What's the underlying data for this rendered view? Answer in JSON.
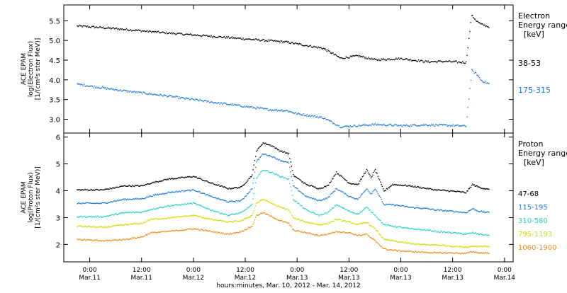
{
  "chart_data": [
    {
      "type": "scatter",
      "panel": "electron",
      "ylabel_lines": [
        "ACE EPAM",
        "log(Electron Flux)",
        "[1/(cm²s ster MeV)]"
      ],
      "ylim": [
        2.65,
        5.9
      ],
      "yticks": [
        3.0,
        3.5,
        4.0,
        4.5,
        5.0,
        5.5
      ],
      "ytick_labels": [
        "3.0",
        "3.5",
        "4.0",
        "4.5",
        "5.0",
        "5.5"
      ],
      "legend_title_lines": [
        "Electron",
        "Energy range",
        "[keV]"
      ],
      "series": [
        {
          "name": "38-53",
          "color": "#000000",
          "x": [
            -3,
            6,
            18,
            30,
            42,
            45.5,
            48,
            54,
            58,
            60,
            62,
            66,
            72,
            78,
            82,
            87,
            88.3,
            89.5,
            90.5,
            92.5
          ],
          "y": [
            5.38,
            5.31,
            5.2,
            5.1,
            5.0,
            4.97,
            4.92,
            4.81,
            4.56,
            4.59,
            4.62,
            4.52,
            4.55,
            4.47,
            4.48,
            4.45,
            5.65,
            5.5,
            5.42,
            5.35
          ]
        },
        {
          "name": "175-315",
          "color": "#1f78d4",
          "x": [
            -3,
            6,
            18,
            30,
            42,
            45.5,
            48,
            54,
            58,
            62,
            66,
            72,
            78,
            82,
            87,
            88.3,
            89.5,
            90.5,
            92.5
          ],
          "y": [
            3.9,
            3.76,
            3.6,
            3.42,
            3.25,
            3.23,
            3.15,
            3.05,
            2.82,
            2.85,
            2.88,
            2.85,
            2.87,
            2.86,
            2.84,
            4.25,
            4.15,
            4.0,
            3.9
          ]
        }
      ]
    },
    {
      "type": "scatter",
      "panel": "proton",
      "ylabel_lines": [
        "ACE EPAM",
        "log(Proton Flux)",
        "[1/(cm²s ster MeV)]"
      ],
      "ylim": [
        1.35,
        6.15
      ],
      "yticks": [
        2,
        3,
        4,
        5,
        6
      ],
      "ytick_labels": [
        "2",
        "3",
        "4",
        "5",
        "6"
      ],
      "legend_title_lines": [
        "Proton",
        "Energy range",
        "[keV]"
      ],
      "xlabel": "hours:minutes, Mar. 10, 2012 - Mar. 14, 2012",
      "xlim": [
        -6,
        98
      ],
      "xticks": [
        0,
        12,
        24,
        36,
        48,
        60,
        72,
        84,
        96
      ],
      "xtick_labels": [
        "0:00",
        "12:00",
        "0:00",
        "12:00",
        "0:00",
        "12:00",
        "0:00",
        "12:00",
        "0:00"
      ],
      "xtick_sublabels": [
        "Mar.11",
        "Mar.11",
        "Mar.12",
        "Mar.12",
        "Mar.13",
        "Mar.13",
        "Mar.13",
        "Mar.13",
        "Mar.14"
      ],
      "series": [
        {
          "name": "47-68",
          "color": "#000000",
          "x": [
            -3,
            3,
            8,
            12,
            14,
            18,
            24,
            28,
            32,
            35,
            37.5,
            38.5,
            40,
            42,
            44,
            46,
            47,
            50,
            53,
            55,
            57,
            60,
            62,
            64,
            65,
            66,
            68,
            70,
            74,
            78,
            80,
            84,
            87,
            88.5,
            90,
            92.5
          ],
          "y": [
            4.05,
            4.05,
            4.2,
            4.2,
            4.3,
            4.45,
            4.55,
            4.3,
            4.1,
            4.15,
            4.6,
            5.5,
            5.8,
            5.7,
            5.5,
            5.4,
            4.6,
            4.25,
            4.1,
            4.2,
            4.7,
            4.3,
            4.25,
            4.8,
            4.5,
            4.8,
            4.0,
            4.25,
            4.2,
            4.1,
            4.05,
            4.0,
            3.95,
            4.25,
            4.15,
            4.05
          ]
        },
        {
          "name": "115-195",
          "color": "#1f78d4",
          "x": [
            -3,
            3,
            8,
            12,
            14,
            18,
            24,
            28,
            32,
            35,
            37.5,
            38.5,
            40,
            42,
            44,
            46,
            47,
            50,
            53,
            55,
            57,
            60,
            62,
            64,
            65,
            66,
            68,
            70,
            74,
            78,
            80,
            84,
            87,
            88.5,
            90,
            92.5
          ],
          "y": [
            3.55,
            3.55,
            3.7,
            3.72,
            3.82,
            3.95,
            4.05,
            3.8,
            3.6,
            3.65,
            4.1,
            5.1,
            5.4,
            5.3,
            5.15,
            5.05,
            4.2,
            3.8,
            3.65,
            3.75,
            4.1,
            3.8,
            3.7,
            4.1,
            3.9,
            4.1,
            3.5,
            3.5,
            3.4,
            3.35,
            3.3,
            3.25,
            3.2,
            3.35,
            3.25,
            3.2
          ]
        },
        {
          "name": "310-580",
          "color": "#22d3c4",
          "x": [
            -3,
            3,
            8,
            12,
            14,
            18,
            24,
            28,
            32,
            35,
            37.5,
            38.5,
            40,
            42,
            44,
            46,
            47,
            50,
            53,
            55,
            57,
            60,
            62,
            64,
            65,
            66,
            68,
            70,
            74,
            78,
            80,
            84,
            87,
            88.5,
            90,
            92.5
          ],
          "y": [
            3.05,
            3.05,
            3.2,
            3.22,
            3.32,
            3.45,
            3.55,
            3.3,
            3.1,
            3.2,
            3.5,
            4.5,
            4.8,
            4.7,
            4.55,
            4.45,
            3.7,
            3.3,
            3.1,
            3.2,
            3.5,
            3.25,
            3.15,
            3.4,
            3.25,
            3.1,
            2.75,
            2.7,
            2.6,
            2.55,
            2.5,
            2.45,
            2.4,
            2.45,
            2.4,
            2.35
          ]
        },
        {
          "name": "795-1193",
          "color": "#ccdd00",
          "x": [
            -3,
            3,
            8,
            12,
            14,
            18,
            24,
            28,
            32,
            35,
            37.5,
            38.5,
            40,
            42,
            44,
            46,
            47,
            50,
            53,
            55,
            57,
            60,
            62,
            64,
            65,
            66,
            68,
            70,
            74,
            78,
            80,
            84,
            87,
            88.5,
            90,
            92.5
          ],
          "y": [
            2.7,
            2.65,
            2.75,
            2.8,
            2.95,
            3.0,
            3.1,
            2.95,
            2.85,
            2.9,
            3.1,
            3.55,
            3.7,
            3.55,
            3.4,
            3.3,
            3.0,
            2.85,
            2.75,
            2.8,
            2.95,
            2.85,
            2.75,
            2.85,
            2.7,
            2.6,
            2.2,
            2.15,
            2.05,
            2.0,
            2.0,
            1.95,
            1.92,
            1.95,
            1.95,
            1.95
          ]
        },
        {
          "name": "1060-1900",
          "color": "#f08a1c",
          "x": [
            -3,
            3,
            8,
            12,
            14,
            18,
            24,
            28,
            32,
            35,
            37.5,
            38.5,
            40,
            42,
            44,
            46,
            47,
            50,
            53,
            55,
            57,
            60,
            62,
            64,
            65,
            66,
            68,
            70,
            74,
            78,
            80,
            84,
            87,
            88.5,
            90,
            92.5
          ],
          "y": [
            2.2,
            2.15,
            2.2,
            2.3,
            2.45,
            2.5,
            2.6,
            2.5,
            2.4,
            2.5,
            2.7,
            3.1,
            3.2,
            3.05,
            2.9,
            2.8,
            2.55,
            2.45,
            2.35,
            2.4,
            2.5,
            2.45,
            2.35,
            2.4,
            2.25,
            2.15,
            1.85,
            1.8,
            1.75,
            1.72,
            1.7,
            1.7,
            1.68,
            1.75,
            1.7,
            1.7
          ]
        }
      ]
    }
  ]
}
